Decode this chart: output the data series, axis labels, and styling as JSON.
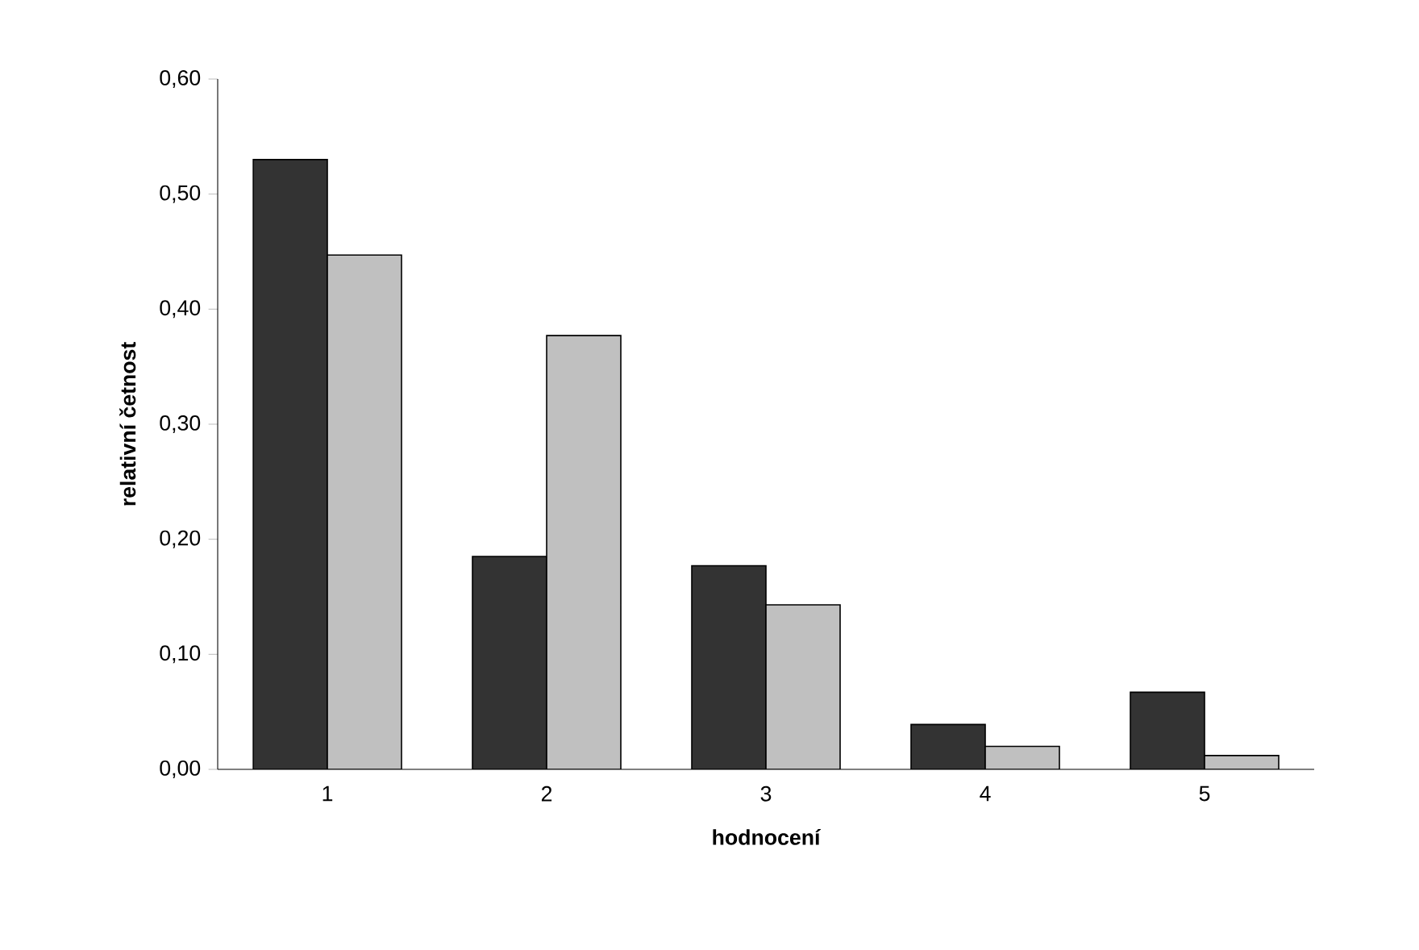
{
  "chart_data": {
    "type": "bar",
    "xlabel": "hodnocení",
    "ylabel": "relativní četnost",
    "categories": [
      "1",
      "2",
      "3",
      "4",
      "5"
    ],
    "series": [
      {
        "color": "#333333",
        "values": [
          0.53,
          0.185,
          0.177,
          0.039,
          0.067
        ]
      },
      {
        "color": "#c0c0c0",
        "values": [
          0.447,
          0.377,
          0.143,
          0.02,
          0.012
        ]
      }
    ],
    "ylim": [
      0,
      0.6
    ],
    "yticks": [
      {
        "value": 0,
        "label": "0,00"
      },
      {
        "value": 0.1,
        "label": "0,10"
      },
      {
        "value": 0.2,
        "label": "0,20"
      },
      {
        "value": 0.3,
        "label": "0,30"
      },
      {
        "value": 0.4,
        "label": "0,40"
      },
      {
        "value": 0.5,
        "label": "0,50"
      },
      {
        "value": 0.6,
        "label": "0,60"
      }
    ],
    "grid": false
  }
}
